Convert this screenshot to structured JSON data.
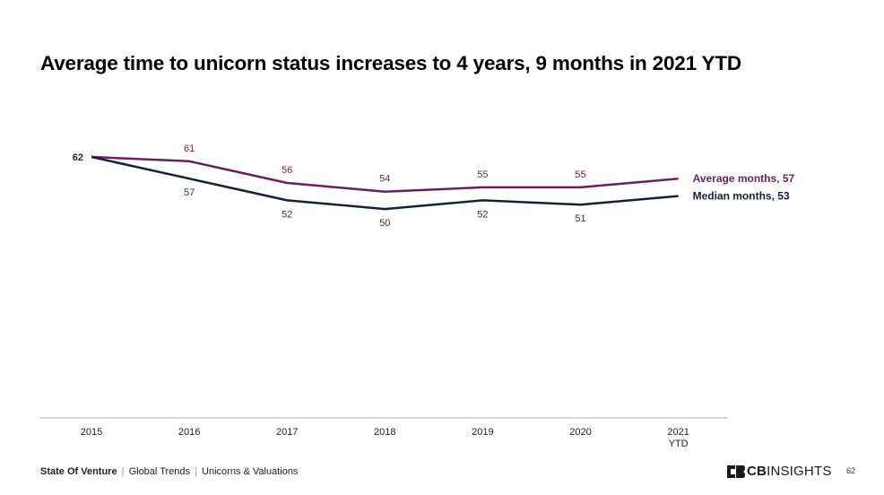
{
  "title": "Average time to unicorn status increases to 4 years, 9 months in 2021 YTD",
  "footer": {
    "report": "State Of Venture",
    "section1": "Global Trends",
    "section2": "Unicorns & Valuations",
    "separator": "|"
  },
  "logo": {
    "cb": "CB",
    "insights": "INSIGHTS"
  },
  "page_number": "62",
  "colors": {
    "average": "#6b1f5c",
    "median": "#14213d",
    "axis": "#aaaaaa"
  },
  "chart_data": {
    "type": "line",
    "categories": [
      {
        "line1": "2015",
        "line2": ""
      },
      {
        "line1": "2016",
        "line2": ""
      },
      {
        "line1": "2017",
        "line2": ""
      },
      {
        "line1": "2018",
        "line2": ""
      },
      {
        "line1": "2019",
        "line2": ""
      },
      {
        "line1": "2020",
        "line2": ""
      },
      {
        "line1": "2021",
        "line2": "YTD"
      }
    ],
    "series": [
      {
        "name": "Average months",
        "end_label": "Average months, 57",
        "values": [
          62,
          61,
          56,
          54,
          55,
          55,
          57
        ],
        "point_labels": [
          "",
          "61",
          "56",
          "54",
          "55",
          "55",
          ""
        ]
      },
      {
        "name": "Median months",
        "end_label": "Median months, 53",
        "values": [
          62,
          57,
          52,
          50,
          52,
          51,
          53
        ],
        "point_labels": [
          "62",
          "57",
          "52",
          "50",
          "52",
          "51",
          ""
        ]
      }
    ],
    "ylim": [
      0,
      62
    ],
    "grid": false,
    "legend": "end-of-line labels"
  }
}
